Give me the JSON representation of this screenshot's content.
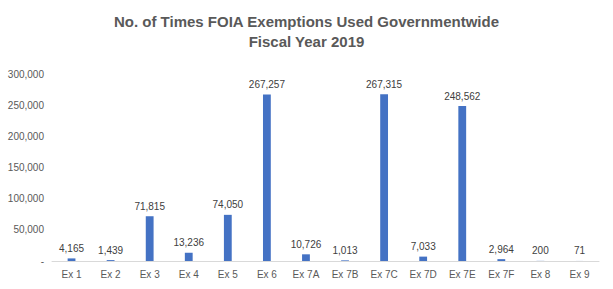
{
  "chart_data": {
    "type": "bar",
    "title": "No. of Times FOIA Exemptions Used Governmentwide\nFiscal Year 2019",
    "categories": [
      "Ex 1",
      "Ex 2",
      "Ex 3",
      "Ex 4",
      "Ex 5",
      "Ex 6",
      "Ex 7A",
      "Ex 7B",
      "Ex 7C",
      "Ex 7D",
      "Ex 7E",
      "Ex 7F",
      "Ex 8",
      "Ex 9"
    ],
    "values": [
      4165,
      1439,
      71815,
      13236,
      74050,
      267257,
      10726,
      1013,
      267315,
      7033,
      248562,
      2964,
      200,
      71
    ],
    "value_labels": [
      "4,165",
      "1,439",
      "71,815",
      "13,236",
      "74,050",
      "267,257",
      "10,726",
      "1,013",
      "267,315",
      "7,033",
      "248,562",
      "2,964",
      "200",
      "71"
    ],
    "color": "#4472c4",
    "ylim": [
      0,
      300000
    ],
    "yticks": [
      {
        "value": 0,
        "label": "-"
      },
      {
        "value": 50000,
        "label": "50,000"
      },
      {
        "value": 100000,
        "label": "100,000"
      },
      {
        "value": 150000,
        "label": "150,000"
      },
      {
        "value": 200000,
        "label": "200,000"
      },
      {
        "value": 250000,
        "label": "250,000"
      },
      {
        "value": 300000,
        "label": "300,000"
      }
    ],
    "grid": false,
    "data_labels": true
  }
}
